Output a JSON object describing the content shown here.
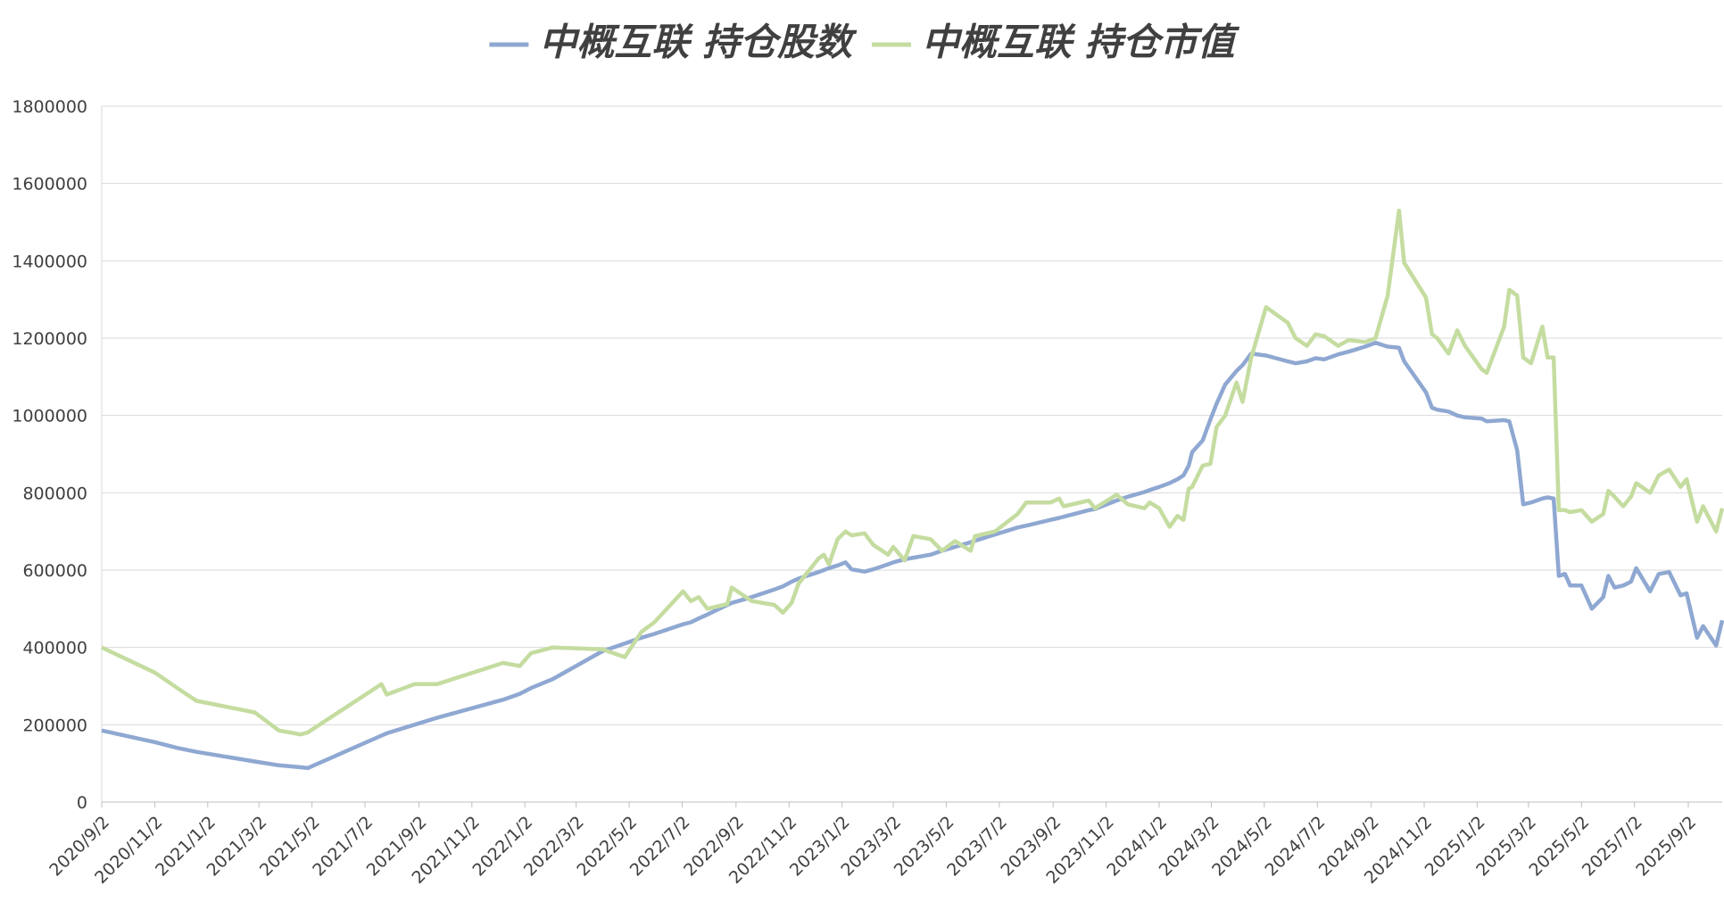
{
  "chart_data": {
    "type": "line",
    "legend_position": "top",
    "grid": true,
    "x": [
      "2020/9/2",
      "2020/11/2",
      "2020/11/28",
      "2020/12/20",
      "2021/2/25",
      "2021/3/25",
      "2021/4/19",
      "2021/4/27",
      "2021/7/21",
      "2021/7/27",
      "2021/8/28",
      "2021/9/23",
      "2021/12/8",
      "2021/12/27",
      "2022/1/9",
      "2022/2/3",
      "2022/4/1",
      "2022/4/27",
      "2022/5/16",
      "2022/5/31",
      "2022/7/3",
      "2022/7/12",
      "2022/7/21",
      "2022/7/31",
      "2022/8/23",
      "2022/8/28",
      "2022/9/20",
      "2022/10/16",
      "2022/10/26",
      "2022/11/5",
      "2022/11/13",
      "2022/12/6",
      "2022/12/12",
      "2022/12/18",
      "2022/12/28",
      "2023/1/6",
      "2023/1/13",
      "2023/1/28",
      "2023/2/7",
      "2023/2/24",
      "2023/3/2",
      "2023/3/15",
      "2023/3/25",
      "2023/4/14",
      "2023/4/27",
      "2023/5/12",
      "2023/5/30",
      "2023/6/4",
      "2023/6/27",
      "2023/7/23",
      "2023/8/2",
      "2023/8/30",
      "2023/9/9",
      "2023/9/14",
      "2023/10/13",
      "2023/10/20",
      "2023/11/14",
      "2023/11/27",
      "2023/12/16",
      "2023/12/22",
      "2024/1/2",
      "2024/1/14",
      "2024/1/23",
      "2024/1/30",
      "2024/2/5",
      "2024/2/9",
      "2024/2/21",
      "2024/3/1",
      "2024/3/8",
      "2024/3/18",
      "2024/3/31",
      "2024/4/7",
      "2024/4/17",
      "2024/5/4",
      "2024/5/29",
      "2024/6/7",
      "2024/6/20",
      "2024/6/30",
      "2024/7/10",
      "2024/7/26",
      "2024/8/7",
      "2024/8/26",
      "2024/9/7",
      "2024/9/21",
      "2024/10/4",
      "2024/10/10",
      "2024/11/4",
      "2024/11/11",
      "2024/11/17",
      "2024/11/30",
      "2024/12/10",
      "2024/12/19",
      "2025/1/7",
      "2025/1/13",
      "2025/2/2",
      "2025/2/8",
      "2025/2/17",
      "2025/2/24",
      "2025/3/5",
      "2025/3/18",
      "2025/3/24",
      "2025/3/31",
      "2025/4/6",
      "2025/4/13",
      "2025/4/19",
      "2025/5/2",
      "2025/5/14",
      "2025/5/27",
      "2025/6/2",
      "2025/6/9",
      "2025/6/19",
      "2025/6/28",
      "2025/7/4",
      "2025/7/20",
      "2025/7/30",
      "2025/8/11",
      "2025/8/24",
      "2025/8/31",
      "2025/9/12",
      "2025/9/19",
      "2025/10/4",
      "2025/10/11"
    ],
    "series": [
      {
        "name": "中概互联 持仓股数",
        "color": "#8fa8d2",
        "values": [
          185000,
          155000,
          140000,
          130000,
          105000,
          95000,
          90000,
          88000,
          172000,
          178000,
          200000,
          218000,
          265000,
          280000,
          295000,
          318000,
          390000,
          410000,
          425000,
          435000,
          460000,
          465000,
          475000,
          485000,
          510000,
          515000,
          530000,
          550000,
          558000,
          570000,
          578000,
          595000,
          600000,
          605000,
          612000,
          620000,
          602000,
          596000,
          602000,
          615000,
          620000,
          628000,
          632000,
          640000,
          650000,
          660000,
          672000,
          676000,
          692000,
          710000,
          715000,
          730000,
          735000,
          738000,
          755000,
          758000,
          780000,
          790000,
          802000,
          807000,
          815000,
          825000,
          835000,
          845000,
          870000,
          905000,
          935000,
          990000,
          1030000,
          1080000,
          1115000,
          1130000,
          1160000,
          1155000,
          1140000,
          1135000,
          1140000,
          1148000,
          1145000,
          1158000,
          1165000,
          1178000,
          1188000,
          1178000,
          1175000,
          1140000,
          1060000,
          1020000,
          1015000,
          1010000,
          1000000,
          995000,
          992000,
          985000,
          988000,
          985000,
          910000,
          770000,
          775000,
          785000,
          788000,
          785000,
          585000,
          590000,
          560000,
          560000,
          500000,
          530000,
          585000,
          555000,
          560000,
          570000,
          605000,
          545000,
          590000,
          595000,
          535000,
          540000,
          425000,
          455000,
          405000,
          470000
        ]
      },
      {
        "name": "中概互联 持仓市值",
        "color": "#c5dca0",
        "values": [
          400000,
          335000,
          295000,
          262000,
          232000,
          185000,
          175000,
          180000,
          305000,
          278000,
          305000,
          305000,
          360000,
          352000,
          385000,
          400000,
          395000,
          375000,
          440000,
          465000,
          545000,
          520000,
          530000,
          500000,
          512000,
          555000,
          520000,
          510000,
          490000,
          515000,
          565000,
          630000,
          640000,
          615000,
          680000,
          700000,
          690000,
          695000,
          665000,
          640000,
          660000,
          625000,
          688000,
          680000,
          650000,
          675000,
          650000,
          688000,
          700000,
          745000,
          775000,
          775000,
          785000,
          765000,
          780000,
          760000,
          795000,
          770000,
          760000,
          775000,
          760000,
          712000,
          740000,
          730000,
          810000,
          815000,
          870000,
          875000,
          970000,
          1000000,
          1085000,
          1035000,
          1150000,
          1280000,
          1240000,
          1200000,
          1180000,
          1210000,
          1205000,
          1180000,
          1195000,
          1190000,
          1200000,
          1310000,
          1530000,
          1395000,
          1305000,
          1210000,
          1200000,
          1160000,
          1220000,
          1180000,
          1120000,
          1110000,
          1230000,
          1325000,
          1310000,
          1150000,
          1135000,
          1230000,
          1150000,
          1150000,
          755000,
          755000,
          750000,
          755000,
          725000,
          745000,
          805000,
          790000,
          765000,
          790000,
          825000,
          800000,
          845000,
          860000,
          815000,
          835000,
          725000,
          765000,
          700000,
          760000
        ]
      }
    ],
    "xlim": [
      "2020/9/2",
      "2025/10/11"
    ],
    "xticks": [
      "2020/9/2",
      "2020/11/2",
      "2021/1/2",
      "2021/3/2",
      "2021/5/2",
      "2021/7/2",
      "2021/9/2",
      "2021/11/2",
      "2022/1/2",
      "2022/3/2",
      "2022/5/2",
      "2022/7/2",
      "2022/9/2",
      "2022/11/2",
      "2023/1/2",
      "2023/3/2",
      "2023/5/2",
      "2023/7/2",
      "2023/9/2",
      "2023/11/2",
      "2024/1/2",
      "2024/3/2",
      "2024/5/2",
      "2024/7/2",
      "2024/9/2",
      "2024/11/2",
      "2025/1/2",
      "2025/3/2",
      "2025/5/2",
      "2025/7/2",
      "2025/9/2"
    ],
    "ylim": [
      0,
      1800000
    ],
    "yticks": [
      0,
      200000,
      400000,
      600000,
      800000,
      1000000,
      1200000,
      1400000,
      1600000,
      1800000
    ]
  }
}
